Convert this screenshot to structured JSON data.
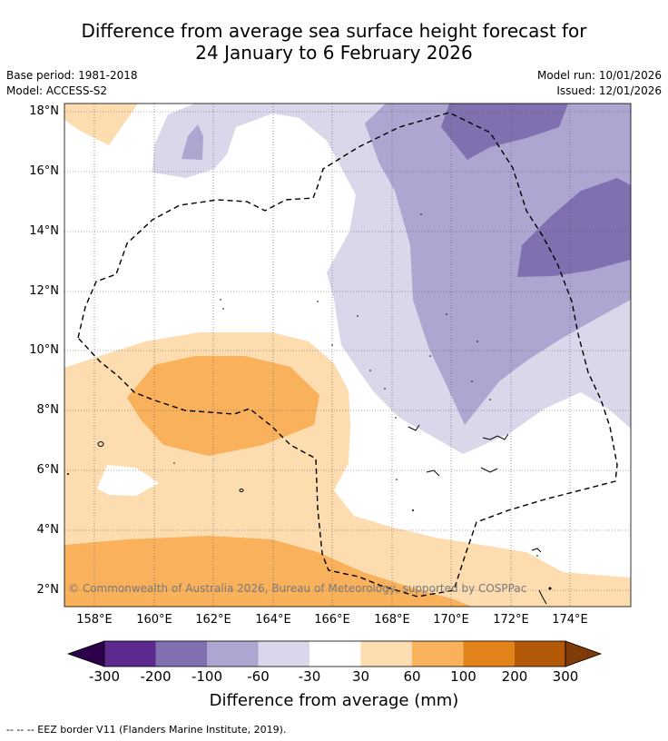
{
  "title": {
    "line1": "Difference from average sea surface height forecast for",
    "line2": "24 January to 6 February 2026"
  },
  "meta": {
    "base_period": "Base period: 1981-2018",
    "model": "Model: ACCESS-S2",
    "model_run": "Model run: 10/01/2026",
    "issued": "Issued: 12/01/2026"
  },
  "map": {
    "lat_labels": [
      "18°N",
      "16°N",
      "14°N",
      "12°N",
      "10°N",
      "8°N",
      "6°N",
      "4°N",
      "2°N"
    ],
    "lon_labels": [
      "158°E",
      "160°E",
      "162°E",
      "164°E",
      "166°E",
      "168°E",
      "170°E",
      "172°E",
      "174°E"
    ],
    "credit": "© Commonwealth of Australia 2026, Bureau of Meteorology, supported by COSPPac"
  },
  "colorbar": {
    "title": "Difference from average (mm)",
    "ticks": [
      "-300",
      "-200",
      "-100",
      "-60",
      "-30",
      "30",
      "60",
      "100",
      "200",
      "300"
    ],
    "colors": [
      "#2d004b",
      "#5c2a8e",
      "#8170b0",
      "#ada6d0",
      "#d8d8ea",
      "#ffffff",
      "#fddcb0",
      "#f9b15c",
      "#e3841b",
      "#b35806",
      "#7f3b08"
    ]
  },
  "footer": {
    "eez_note": "--  --  -- EEZ border V11 (Flanders Marine Institute, 2019)."
  }
}
